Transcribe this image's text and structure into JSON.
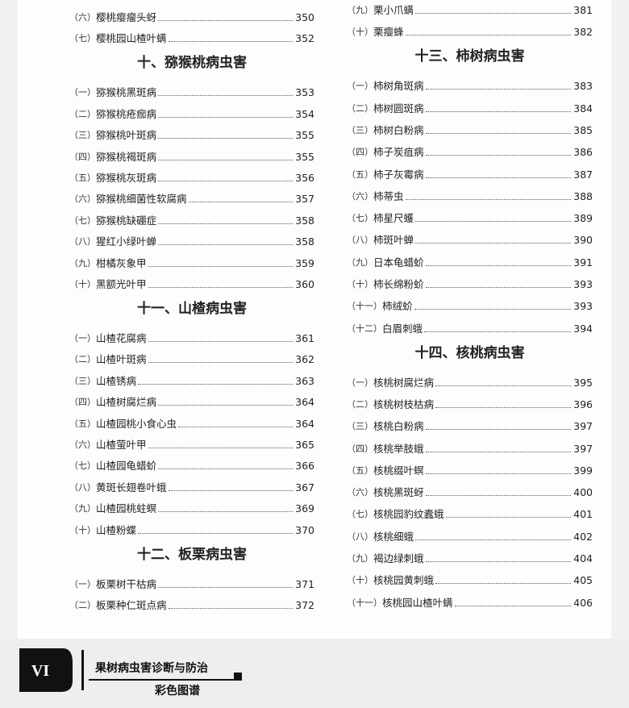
{
  "left": [
    {
      "num": "（六）",
      "title": "樱桃瘿瘤头蚜",
      "page": 350
    },
    {
      "num": "（七）",
      "title": "樱桃园山楂叶螨",
      "page": 352
    },
    {
      "heading": "十、猕猴桃病虫害"
    },
    {
      "num": "（一）",
      "title": "猕猴桃黑斑病",
      "page": 353
    },
    {
      "num": "（二）",
      "title": "猕猴桃疮痂病",
      "page": 354
    },
    {
      "num": "（三）",
      "title": "猕猴桃叶斑病",
      "page": 355
    },
    {
      "num": "（四）",
      "title": "猕猴桃褐斑病",
      "page": 355
    },
    {
      "num": "（五）",
      "title": "猕猴桃灰斑病",
      "page": 356
    },
    {
      "num": "（六）",
      "title": "猕猴桃细菌性软腐病",
      "page": 357
    },
    {
      "num": "（七）",
      "title": "猕猴桃缺硼症",
      "page": 358
    },
    {
      "num": "（八）",
      "title": "猩红小绿叶蝉",
      "page": 358
    },
    {
      "num": "（九）",
      "title": "柑橘灰象甲",
      "page": 359
    },
    {
      "num": "（十）",
      "title": "黑额光叶甲",
      "page": 360
    },
    {
      "heading": "十一、山楂病虫害"
    },
    {
      "num": "（一）",
      "title": "山楂花腐病",
      "page": 361
    },
    {
      "num": "（二）",
      "title": "山楂叶斑病",
      "page": 362
    },
    {
      "num": "（三）",
      "title": "山楂锈病",
      "page": 363
    },
    {
      "num": "（四）",
      "title": "山楂树腐烂病",
      "page": 364
    },
    {
      "num": "（五）",
      "title": "山楂园桃小食心虫",
      "page": 364
    },
    {
      "num": "（六）",
      "title": "山楂萤叶甲",
      "page": 365
    },
    {
      "num": "（七）",
      "title": "山楂园龟蜡蚧",
      "page": 366
    },
    {
      "num": "（八）",
      "title": "黄斑长翅卷叶蛾",
      "page": 367
    },
    {
      "num": "（九）",
      "title": "山楂园桃蛀螟",
      "page": 369
    },
    {
      "num": "（十）",
      "title": "山楂粉蝶",
      "page": 370
    },
    {
      "heading": "十二、板栗病虫害"
    },
    {
      "num": "（一）",
      "title": "板栗树干枯病",
      "page": 371
    },
    {
      "num": "（二）",
      "title": "板栗种仁斑点病",
      "page": 372
    }
  ],
  "right": [
    {
      "num": "（九）",
      "title": "栗小爪螨",
      "page": 381
    },
    {
      "num": "（十）",
      "title": "栗瘿蜂",
      "page": 382
    },
    {
      "heading": "十三、柿树病虫害"
    },
    {
      "num": "（一）",
      "title": "柿树角斑病",
      "page": 383
    },
    {
      "num": "（二）",
      "title": "柿树圆斑病",
      "page": 384
    },
    {
      "num": "（三）",
      "title": "柿树白粉病",
      "page": 385
    },
    {
      "num": "（四）",
      "title": "柿子炭疽病",
      "page": 386
    },
    {
      "num": "（五）",
      "title": "柿子灰霉病",
      "page": 387
    },
    {
      "num": "（六）",
      "title": "柿蒂虫",
      "page": 388
    },
    {
      "num": "（七）",
      "title": "柿星尺蠖",
      "page": 389
    },
    {
      "num": "（八）",
      "title": "柿斑叶蝉",
      "page": 390
    },
    {
      "num": "（九）",
      "title": "日本龟蜡蚧",
      "page": 391
    },
    {
      "num": "（十）",
      "title": "柿长绵粉蚧",
      "page": 393
    },
    {
      "num": "（十一）",
      "title": "柿绒蚧",
      "page": 393
    },
    {
      "num": "（十二）",
      "title": "白眉刺蛾",
      "page": 394
    },
    {
      "heading": "十四、核桃病虫害"
    },
    {
      "num": "（一）",
      "title": "核桃树腐烂病",
      "page": 395
    },
    {
      "num": "（二）",
      "title": "核桃树枝枯病",
      "page": 396
    },
    {
      "num": "（三）",
      "title": "核桃白粉病",
      "page": 397
    },
    {
      "num": "（四）",
      "title": "核桃举肢蛾",
      "page": 397
    },
    {
      "num": "（五）",
      "title": "核桃缀叶螟",
      "page": 399
    },
    {
      "num": "（六）",
      "title": "核桃黑斑蚜",
      "page": 400
    },
    {
      "num": "（七）",
      "title": "核桃园豹纹蠹蛾",
      "page": 401
    },
    {
      "num": "（八）",
      "title": "核桃细蛾",
      "page": 402
    },
    {
      "num": "（九）",
      "title": "褐边绿刺蛾",
      "page": 404
    },
    {
      "num": "（十）",
      "title": "核桃园黄刺蛾",
      "page": 405
    },
    {
      "num": "（十一）",
      "title": "核桃园山楂叶螨",
      "page": 406
    }
  ],
  "footer": {
    "page_label": "VI",
    "book_title": "果树病虫害诊断与防治",
    "subtitle": "彩色图谱"
  }
}
